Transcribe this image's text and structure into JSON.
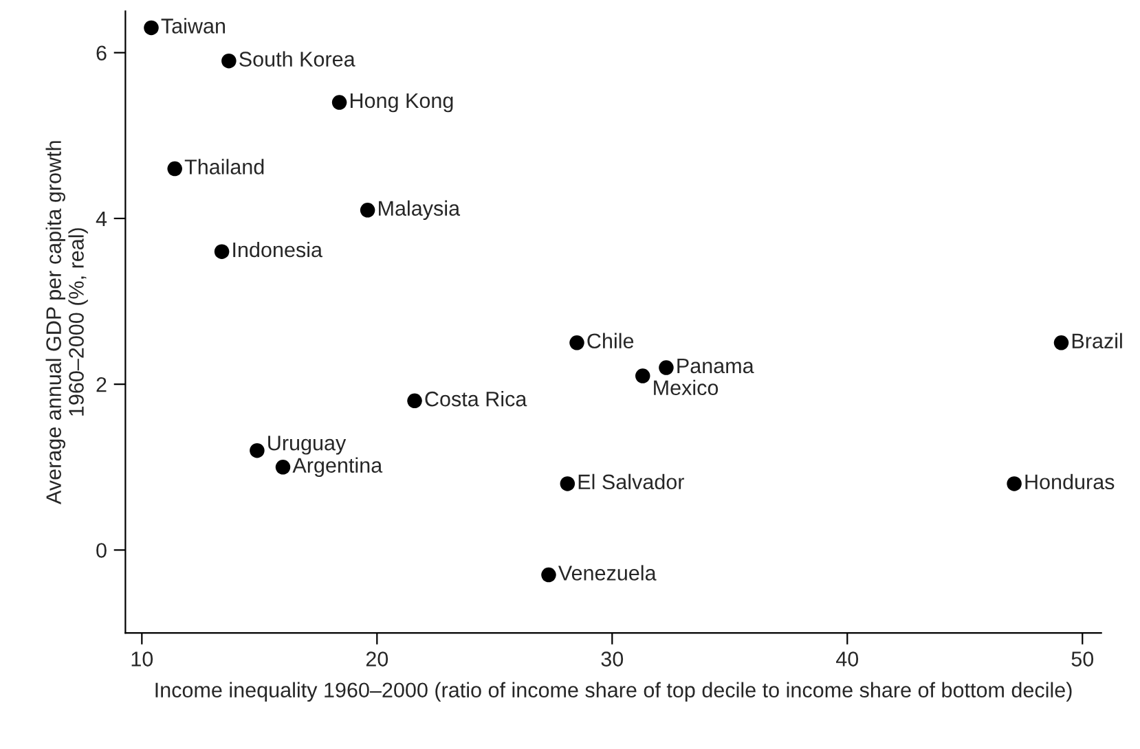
{
  "chart_data": {
    "type": "scatter",
    "xlabel": "Income inequality 1960–2000 (ratio of income share of top decile to income share of bottom decile)",
    "ylabel": "Average annual GDP per capita growth\n1960–2000 (%, real)",
    "x": [
      10.4,
      13.7,
      18.4,
      11.4,
      19.6,
      13.4,
      28.5,
      21.6,
      31.3,
      32.3,
      49.1,
      47.1,
      28.1,
      27.3,
      14.9,
      16.0
    ],
    "series": [
      {
        "color": "#000000",
        "values": [
          6.3,
          5.9,
          5.4,
          4.6,
          4.1,
          3.6,
          2.5,
          1.8,
          2.1,
          2.2,
          2.5,
          0.8,
          0.8,
          -0.3,
          1.2,
          1.0
        ]
      }
    ],
    "annotations": [
      {
        "text": "Taiwan",
        "x": 10.4,
        "y": 6.3
      },
      {
        "text": "South Korea",
        "x": 13.7,
        "y": 5.9
      },
      {
        "text": "Hong Kong",
        "x": 18.4,
        "y": 5.4
      },
      {
        "text": "Thailand",
        "x": 11.4,
        "y": 4.6
      },
      {
        "text": "Malaysia",
        "x": 19.6,
        "y": 4.1
      },
      {
        "text": "Indonesia",
        "x": 13.4,
        "y": 3.6
      },
      {
        "text": "Chile",
        "x": 28.5,
        "y": 2.5
      },
      {
        "text": "Costa Rica",
        "x": 21.6,
        "y": 1.8
      },
      {
        "text": "Mexico",
        "x": 31.3,
        "y": 2.1
      },
      {
        "text": "Panama",
        "x": 32.3,
        "y": 2.2
      },
      {
        "text": "Brazil",
        "x": 49.1,
        "y": 2.5
      },
      {
        "text": "Honduras",
        "x": 47.1,
        "y": 0.8
      },
      {
        "text": "El Salvador",
        "x": 28.1,
        "y": 0.8
      },
      {
        "text": "Venezuela",
        "x": 27.3,
        "y": -0.3
      },
      {
        "text": "Uruguay",
        "x": 14.9,
        "y": 1.2
      },
      {
        "text": "Argentina",
        "x": 16.0,
        "y": 1.0
      }
    ],
    "xlim": [
      9.3,
      50.8
    ],
    "ylim": [
      -1.0,
      6.5
    ],
    "xticks": [
      10,
      20,
      30,
      40,
      50
    ],
    "yticks": [
      0,
      2,
      4,
      6
    ],
    "marker": "circle",
    "grid": false,
    "legend": false
  }
}
